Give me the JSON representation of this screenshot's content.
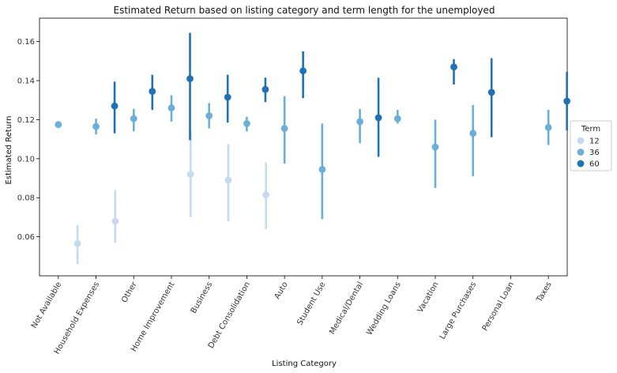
{
  "chart_data": {
    "type": "scatter",
    "title": "Estimated Return based on listing category and term length for the unemployed",
    "xlabel": "Listing Category",
    "ylabel": "Estimated Return",
    "ylim": [
      0.04,
      0.172
    ],
    "yticks": [
      0.06,
      0.08,
      0.1,
      0.12,
      0.14,
      0.16
    ],
    "ytick_labels": [
      "0.06",
      "0.08",
      "0.10",
      "0.12",
      "0.14",
      "0.16"
    ],
    "categories": [
      "Not Available",
      "Household Expenses",
      "Other",
      "Home Improvement",
      "Business",
      "Debt Consolidation",
      "Auto",
      "Student Use",
      "Medical/Dental",
      "Wedding Loans",
      "Vacation",
      "Large Purchases",
      "Personal Loan",
      "Taxes"
    ],
    "legend": {
      "title": "Term",
      "placement": "center-right outside"
    },
    "series": [
      {
        "name": "12",
        "color": "#c6dbef",
        "values": [
          null,
          0.0565,
          0.068,
          null,
          0.092,
          0.089,
          0.0815,
          null,
          null,
          null,
          null,
          null,
          null,
          null
        ],
        "ci_low": [
          null,
          0.046,
          0.057,
          null,
          0.07,
          0.068,
          0.064,
          null,
          null,
          null,
          null,
          null,
          null,
          null
        ],
        "ci_high": [
          null,
          0.066,
          0.084,
          null,
          0.115,
          0.1075,
          0.098,
          null,
          null,
          null,
          null,
          null,
          null,
          null
        ]
      },
      {
        "name": "36",
        "color": "#6baed6",
        "values": [
          0.1175,
          0.1165,
          0.1205,
          0.126,
          0.122,
          0.118,
          0.1155,
          0.0945,
          0.119,
          0.1205,
          0.106,
          0.113,
          null,
          0.116
        ],
        "ci_low": [
          null,
          0.1125,
          0.114,
          0.119,
          0.1155,
          0.114,
          0.0975,
          0.069,
          0.108,
          0.118,
          0.085,
          0.091,
          null,
          0.107
        ],
        "ci_high": [
          null,
          0.1205,
          0.1255,
          0.1325,
          0.1285,
          0.1215,
          0.132,
          0.118,
          0.1255,
          0.125,
          0.12,
          0.1275,
          null,
          0.125
        ]
      },
      {
        "name": "60",
        "color": "#2171b5",
        "values": [
          null,
          0.127,
          0.1345,
          null,
          0.1315,
          0.1355,
          0.145,
          null,
          0.121,
          null,
          0.147,
          0.134,
          null,
          0.1295
        ],
        "ci_low": [
          null,
          0.113,
          0.125,
          null,
          0.1185,
          0.129,
          0.131,
          null,
          0.101,
          null,
          0.138,
          0.111,
          null,
          0.1145
        ],
        "ci_high": [
          null,
          0.1395,
          0.143,
          null,
          0.143,
          0.1415,
          0.155,
          null,
          0.1415,
          null,
          0.151,
          0.1515,
          null,
          0.1445
        ]
      }
    ],
    "home_improvement_60": {
      "value": 0.141,
      "ci_low": 0.1095,
      "ci_high": 0.1645
    }
  }
}
